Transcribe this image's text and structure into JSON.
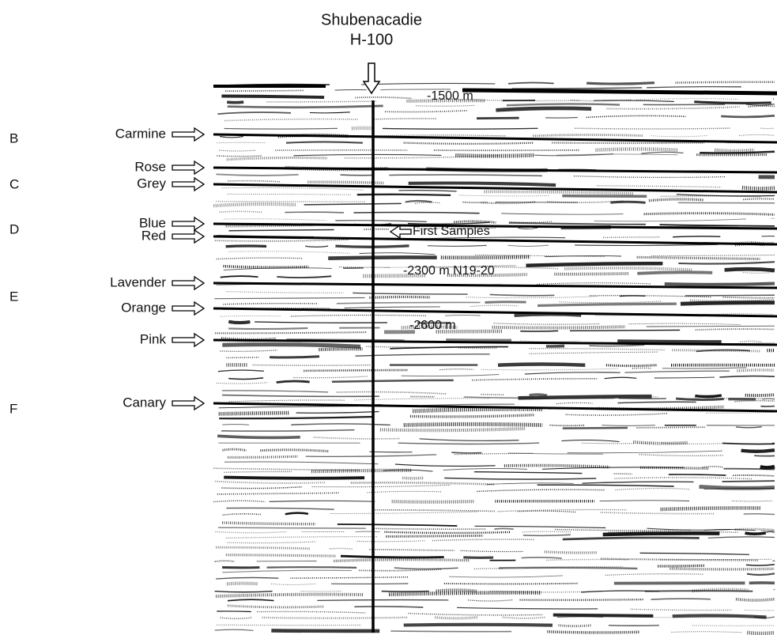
{
  "well": {
    "name": "Shubenacadie",
    "id": "H-100"
  },
  "annotations": [
    "-1500 m",
    "First Samples",
    "-2300 m N19-20",
    "-2600 m"
  ],
  "sequences": [
    "B",
    "C",
    "D",
    "E",
    "F"
  ],
  "horizons": [
    "Carmine",
    "Rose",
    "Grey",
    "Blue",
    "Red",
    "Lavender",
    "Orange",
    "Pink",
    "Canary"
  ]
}
